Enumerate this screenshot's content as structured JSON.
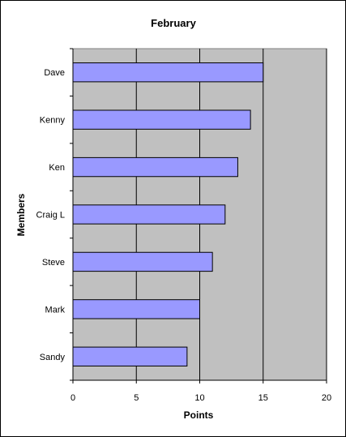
{
  "chart_data": {
    "type": "bar",
    "orientation": "horizontal",
    "title": "February",
    "xlabel": "Points",
    "ylabel": "Members",
    "categories": [
      "Dave",
      "Kenny",
      "Ken",
      "Craig L",
      "Steve",
      "Mark",
      "Sandy"
    ],
    "values": [
      15,
      14,
      13,
      12,
      11,
      10,
      9
    ],
    "xlim": [
      0,
      20
    ],
    "xticks": [
      0,
      5,
      10,
      15,
      20
    ],
    "grid": true,
    "plot_background": "#c0c0c0",
    "bar_color": "#9999ff"
  }
}
